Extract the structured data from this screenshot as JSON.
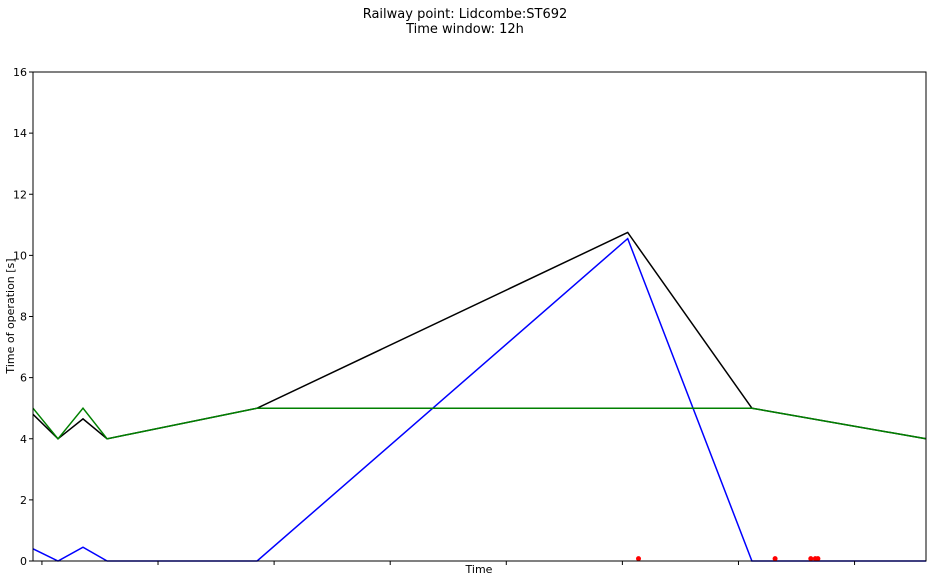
{
  "chart_data": {
    "type": "line",
    "title": "Railway point: Lidcombe:ST692",
    "subtitle": "Time window: 12h",
    "xlabel": "Time",
    "ylabel": "Time of operation [s]",
    "ylim": [
      0,
      16
    ],
    "yticks": [
      0,
      2,
      4,
      6,
      8,
      10,
      12,
      14,
      16
    ],
    "xlim": [
      0,
      100
    ],
    "xticks": [
      1,
      14,
      27,
      40,
      53,
      66,
      79,
      92
    ],
    "grid": false,
    "series": [
      {
        "color": "#0000ff",
        "x": [
          0,
          2.8,
          5.6,
          8.3,
          25.1,
          66.6,
          80.5,
          100
        ],
        "values": [
          0.4,
          0,
          0.45,
          0,
          0,
          10.55,
          0,
          0
        ]
      },
      {
        "color": "#000000",
        "x": [
          0,
          2.8,
          5.6,
          8.3,
          25.1,
          66.6,
          80.5,
          100
        ],
        "values": [
          4.8,
          4,
          4.65,
          4,
          5,
          10.75,
          5,
          4
        ]
      },
      {
        "color": "#008000",
        "x": [
          0,
          2.8,
          5.6,
          8.3,
          25.1,
          66.6,
          80.5,
          100
        ],
        "values": [
          5,
          4,
          5,
          4,
          5,
          5,
          5,
          4
        ]
      }
    ],
    "markers": {
      "color": "#ff0000",
      "x": [
        67.8,
        83.1,
        87.1,
        87.6,
        87.9
      ],
      "values": [
        0.08,
        0.08,
        0.08,
        0.08,
        0.08
      ]
    }
  }
}
